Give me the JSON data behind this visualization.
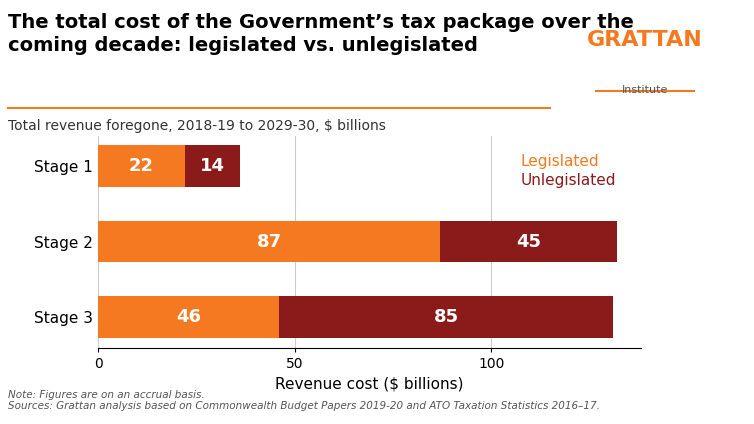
{
  "title": "The total cost of the Government’s tax package over the\ncoming decade: legislated vs. unlegislated",
  "subtitle": "Total revenue foregone, 2018-19 to 2029-30, $ billions",
  "xlabel": "Revenue cost ($ billions)",
  "note": "Note: Figures are on an accrual basis.\nSources: Grattan analysis based on Commonwealth Budget Papers 2019-20 and ATO Taxation Statistics 2016–17.",
  "categories": [
    "Stage 3",
    "Stage 2",
    "Stage 1"
  ],
  "legislated": [
    46,
    87,
    22
  ],
  "unlegislated": [
    85,
    45,
    14
  ],
  "color_legislated": "#F47920",
  "color_unlegislated": "#8B1A1A",
  "legend_legislated": "Legislated",
  "legend_unlegislated": "Unlegislated",
  "xlim": [
    0,
    138
  ],
  "xticks": [
    0,
    50,
    100
  ],
  "grattan_color": "#F47920",
  "grattan_text": "GRATTAN",
  "grattan_sub": "Institute",
  "bar_height": 0.55,
  "label_fontsize": 13,
  "title_fontsize": 14,
  "subtitle_fontsize": 10,
  "xlabel_fontsize": 11,
  "note_fontsize": 7.5,
  "ytick_fontsize": 11,
  "xtick_fontsize": 10,
  "legend_fontsize": 11
}
